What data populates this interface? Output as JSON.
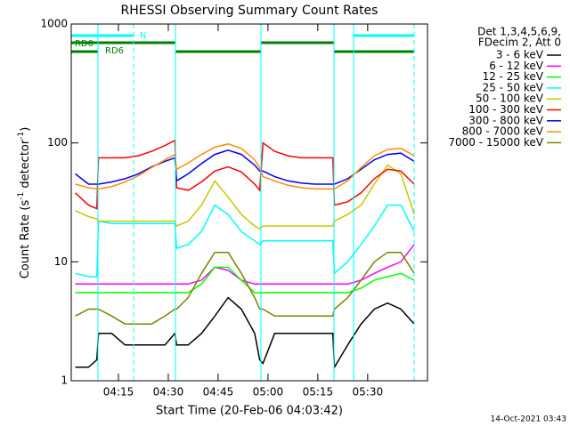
{
  "chart_data": {
    "type": "line",
    "title": "RHESSI Observing Summary Count Rates",
    "header": [
      "Det 1,3,4,5,6,9,",
      "FDecim 2, Att 0"
    ],
    "xlabel": "Start Time (20-Feb-06 04:03:42)",
    "ylabel": {
      "text1": "Count Rate (s",
      "sup1": "-1",
      "text2": " detector",
      "sup2": "-1",
      "text3": ")"
    },
    "annotations": [
      "N",
      "RD0",
      "RD6"
    ],
    "timestamp": "14-Oct-2021 03:43",
    "log_y": true,
    "xlim": [
      0.8,
      108
    ],
    "ylim": [
      1,
      1000
    ],
    "xticks": [
      {
        "value": 15,
        "label": "04:15"
      },
      {
        "value": 30,
        "label": "04:30"
      },
      {
        "value": 45,
        "label": "04:45"
      },
      {
        "value": 60,
        "label": "05:00"
      },
      {
        "value": 75,
        "label": "05:15"
      },
      {
        "value": 90,
        "label": "05:30"
      }
    ],
    "yticks": [
      1,
      10,
      100,
      1000
    ],
    "x": [
      2,
      6,
      8.5,
      9,
      13,
      17,
      21,
      25,
      29,
      32,
      32.5,
      36,
      40,
      44,
      48,
      52,
      56,
      57.5,
      58.5,
      62,
      66,
      70,
      74,
      78,
      79.5,
      80,
      84,
      88,
      92,
      96,
      100,
      104
    ],
    "series": [
      {
        "name": "3 - 6 keV",
        "color": "#000000",
        "values": [
          1.3,
          1.3,
          1.5,
          2.5,
          2.5,
          2,
          2,
          2,
          2,
          2.5,
          2,
          2,
          2.5,
          3.5,
          5,
          4,
          2.5,
          1.5,
          1.4,
          2.5,
          2.5,
          2.5,
          2.5,
          2.5,
          2.5,
          1.3,
          2,
          3,
          4,
          4.5,
          4,
          3
        ]
      },
      {
        "name": "6 - 12 keV",
        "color": "#ff00ff",
        "values": [
          6.5,
          6.5,
          6.5,
          6.5,
          6.5,
          6.5,
          6.5,
          6.5,
          6.5,
          6.5,
          6.5,
          6.5,
          7,
          9,
          8.5,
          7,
          6.5,
          6.5,
          6.5,
          6.5,
          6.5,
          6.5,
          6.5,
          6.5,
          6.5,
          6.5,
          6.5,
          7,
          8,
          9,
          10,
          14
        ]
      },
      {
        "name": "12 - 25 keV",
        "color": "#00ff00",
        "values": [
          5.5,
          5.5,
          5.5,
          5.5,
          5.5,
          5.5,
          5.5,
          5.5,
          5.5,
          5.5,
          5.5,
          5.5,
          6.5,
          9,
          9,
          7,
          5.5,
          5.5,
          5.5,
          5.5,
          5.5,
          5.5,
          5.5,
          5.5,
          5.5,
          5.5,
          5.5,
          6,
          7,
          7.5,
          8,
          7
        ]
      },
      {
        "name": "25 - 50 keV",
        "color": "#00ffff",
        "values": [
          8,
          7.5,
          7.5,
          22,
          21,
          21,
          21,
          21,
          21,
          21,
          13,
          14,
          18,
          30,
          25,
          18,
          15,
          14,
          15,
          15,
          15,
          15,
          15,
          15,
          15,
          8,
          10,
          14,
          20,
          30,
          30,
          18
        ]
      },
      {
        "name": "50 - 100 keV",
        "color": "#c8c800",
        "values": [
          27,
          24,
          23,
          22,
          22,
          22,
          22,
          22,
          22,
          22,
          20,
          22,
          30,
          48,
          35,
          25,
          20,
          19,
          20,
          20,
          20,
          20,
          20,
          20,
          20,
          22,
          25,
          30,
          45,
          65,
          55,
          25
        ]
      },
      {
        "name": "100 - 300 keV",
        "color": "#ff0000",
        "values": [
          38,
          30,
          28,
          75,
          75,
          75,
          78,
          85,
          95,
          105,
          42,
          40,
          47,
          58,
          63,
          57,
          45,
          40,
          100,
          85,
          78,
          75,
          75,
          75,
          75,
          30,
          32,
          38,
          50,
          60,
          58,
          45
        ]
      },
      {
        "name": "300 - 800 keV",
        "color": "#0000ff",
        "values": [
          55,
          45,
          45,
          45,
          47,
          50,
          55,
          63,
          70,
          75,
          48,
          55,
          67,
          80,
          87,
          80,
          65,
          58,
          58,
          52,
          48,
          46,
          45,
          45,
          45,
          45,
          50,
          60,
          72,
          80,
          82,
          70
        ]
      },
      {
        "name": "800 - 7000 keV",
        "color": "#ff8c00",
        "values": [
          45,
          42,
          41,
          41,
          43,
          47,
          53,
          62,
          72,
          80,
          60,
          68,
          80,
          92,
          98,
          90,
          72,
          62,
          52,
          48,
          44,
          42,
          41,
          41,
          41,
          41,
          48,
          62,
          78,
          88,
          90,
          78
        ]
      },
      {
        "name": "7000 - 15000 keV",
        "color": "#808000",
        "values": [
          3.5,
          4,
          4,
          4,
          3.5,
          3,
          3,
          3,
          3.5,
          4,
          4,
          5,
          8,
          12,
          12,
          8,
          5,
          4,
          4,
          3.5,
          3.5,
          3.5,
          3.5,
          3.5,
          3.5,
          4,
          5,
          7,
          10,
          12,
          12,
          8
        ]
      }
    ]
  }
}
